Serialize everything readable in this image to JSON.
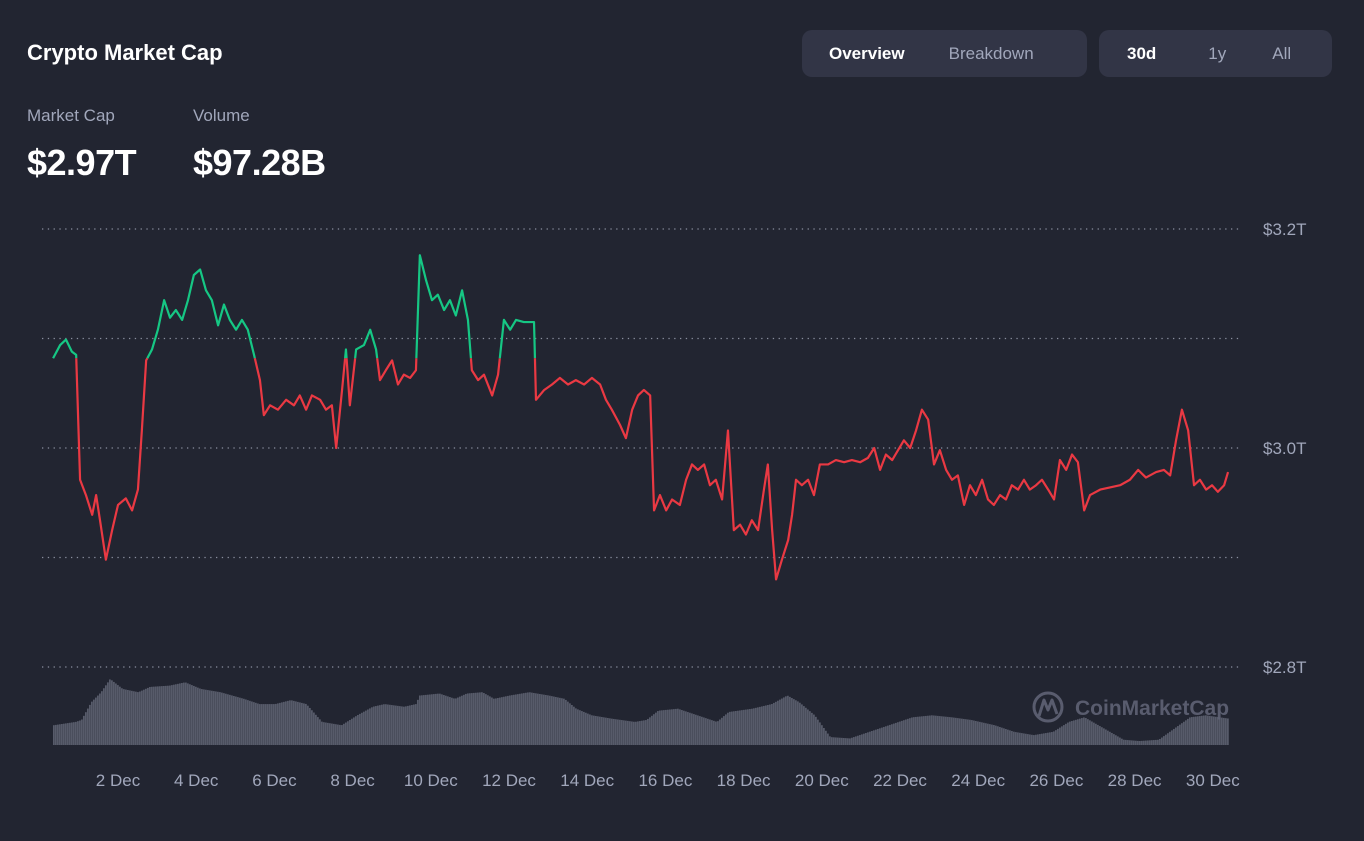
{
  "header": {
    "title": "Crypto Market Cap"
  },
  "view_tabs": [
    {
      "label": "Overview",
      "active": true
    },
    {
      "label": "Breakdown",
      "active": false
    }
  ],
  "range_tabs": [
    {
      "label": "30d",
      "active": true
    },
    {
      "label": "1y",
      "active": false
    },
    {
      "label": "All",
      "active": false
    }
  ],
  "metrics": {
    "market_cap_label": "Market Cap",
    "market_cap_value": "$2.97T",
    "volume_label": "Volume",
    "volume_value": "$97.28B"
  },
  "watermark": "CoinMarketCap",
  "colors": {
    "up": "#16c784",
    "down": "#ea3943",
    "volume": "#5d6170",
    "grid": "#8a8f9f",
    "background": "#222531"
  },
  "chart_data": {
    "type": "line",
    "ylabel": "",
    "xlabel": "",
    "ylim": [
      2.8,
      3.2
    ],
    "y_ticks": [
      {
        "value": 3.2,
        "label": "$3.2T"
      },
      {
        "value": 3.1,
        "label": ""
      },
      {
        "value": 3.0,
        "label": "$3.0T"
      },
      {
        "value": 2.9,
        "label": ""
      },
      {
        "value": 2.8,
        "label": "$2.8T"
      }
    ],
    "x_unit": "day of December",
    "x_ticks": [
      {
        "value": 2,
        "label": "2 Dec"
      },
      {
        "value": 4,
        "label": "4 Dec"
      },
      {
        "value": 6,
        "label": "6 Dec"
      },
      {
        "value": 8,
        "label": "8 Dec"
      },
      {
        "value": 10,
        "label": "10 Dec"
      },
      {
        "value": 12,
        "label": "12 Dec"
      },
      {
        "value": 14,
        "label": "14 Dec"
      },
      {
        "value": 16,
        "label": "16 Dec"
      },
      {
        "value": 18,
        "label": "18 Dec"
      },
      {
        "value": 20,
        "label": "20 Dec"
      },
      {
        "value": 22,
        "label": "22 Dec"
      },
      {
        "value": 24,
        "label": "24 Dec"
      },
      {
        "value": 26,
        "label": "26 Dec"
      },
      {
        "value": 28,
        "label": "28 Dec"
      },
      {
        "value": 30,
        "label": "30 Dec"
      }
    ],
    "coloring": "green above first value, red below",
    "grid": true,
    "series": [
      {
        "unit": "T USD",
        "points": [
          [
            0.34,
            3.082
          ],
          [
            0.52,
            3.094
          ],
          [
            0.67,
            3.099
          ],
          [
            0.82,
            3.088
          ],
          [
            0.93,
            3.085
          ],
          [
            1.03,
            2.971
          ],
          [
            1.18,
            2.957
          ],
          [
            1.34,
            2.939
          ],
          [
            1.44,
            2.957
          ],
          [
            1.54,
            2.934
          ],
          [
            1.69,
            2.898
          ],
          [
            1.85,
            2.925
          ],
          [
            2.0,
            2.948
          ],
          [
            2.2,
            2.954
          ],
          [
            2.36,
            2.943
          ],
          [
            2.51,
            2.962
          ],
          [
            2.61,
            3.016
          ],
          [
            2.72,
            3.08
          ],
          [
            2.87,
            3.09
          ],
          [
            3.02,
            3.108
          ],
          [
            3.18,
            3.135
          ],
          [
            3.33,
            3.119
          ],
          [
            3.48,
            3.126
          ],
          [
            3.64,
            3.117
          ],
          [
            3.79,
            3.135
          ],
          [
            3.94,
            3.158
          ],
          [
            4.1,
            3.163
          ],
          [
            4.25,
            3.144
          ],
          [
            4.4,
            3.135
          ],
          [
            4.56,
            3.112
          ],
          [
            4.71,
            3.131
          ],
          [
            4.86,
            3.117
          ],
          [
            5.02,
            3.108
          ],
          [
            5.17,
            3.117
          ],
          [
            5.32,
            3.108
          ],
          [
            5.48,
            3.085
          ],
          [
            5.63,
            3.062
          ],
          [
            5.73,
            3.03
          ],
          [
            5.89,
            3.039
          ],
          [
            6.09,
            3.035
          ],
          [
            6.3,
            3.044
          ],
          [
            6.5,
            3.039
          ],
          [
            6.65,
            3.048
          ],
          [
            6.81,
            3.035
          ],
          [
            6.96,
            3.048
          ],
          [
            7.17,
            3.044
          ],
          [
            7.32,
            3.035
          ],
          [
            7.47,
            3.039
          ],
          [
            7.58,
            3.0
          ],
          [
            7.73,
            3.053
          ],
          [
            7.83,
            3.09
          ],
          [
            7.93,
            3.039
          ],
          [
            8.09,
            3.09
          ],
          [
            8.29,
            3.094
          ],
          [
            8.45,
            3.108
          ],
          [
            8.6,
            3.09
          ],
          [
            8.7,
            3.062
          ],
          [
            8.85,
            3.071
          ],
          [
            9.01,
            3.08
          ],
          [
            9.16,
            3.058
          ],
          [
            9.31,
            3.067
          ],
          [
            9.47,
            3.064
          ],
          [
            9.62,
            3.071
          ],
          [
            9.72,
            3.176
          ],
          [
            9.88,
            3.153
          ],
          [
            10.03,
            3.135
          ],
          [
            10.18,
            3.14
          ],
          [
            10.34,
            3.126
          ],
          [
            10.49,
            3.135
          ],
          [
            10.64,
            3.121
          ],
          [
            10.8,
            3.144
          ],
          [
            10.95,
            3.117
          ],
          [
            11.05,
            3.071
          ],
          [
            11.21,
            3.062
          ],
          [
            11.36,
            3.067
          ],
          [
            11.57,
            3.048
          ],
          [
            11.72,
            3.067
          ],
          [
            11.87,
            3.117
          ],
          [
            12.03,
            3.108
          ],
          [
            12.18,
            3.117
          ],
          [
            12.38,
            3.115
          ],
          [
            12.64,
            3.115
          ],
          [
            12.69,
            3.044
          ],
          [
            12.9,
            3.053
          ],
          [
            13.1,
            3.058
          ],
          [
            13.3,
            3.064
          ],
          [
            13.51,
            3.058
          ],
          [
            13.71,
            3.062
          ],
          [
            13.92,
            3.058
          ],
          [
            14.12,
            3.064
          ],
          [
            14.33,
            3.058
          ],
          [
            14.48,
            3.044
          ],
          [
            14.63,
            3.035
          ],
          [
            14.84,
            3.021
          ],
          [
            14.99,
            3.009
          ],
          [
            15.15,
            3.035
          ],
          [
            15.3,
            3.048
          ],
          [
            15.45,
            3.053
          ],
          [
            15.61,
            3.048
          ],
          [
            15.71,
            2.943
          ],
          [
            15.86,
            2.957
          ],
          [
            16.02,
            2.943
          ],
          [
            16.17,
            2.953
          ],
          [
            16.37,
            2.948
          ],
          [
            16.53,
            2.971
          ],
          [
            16.68,
            2.985
          ],
          [
            16.83,
            2.98
          ],
          [
            16.99,
            2.985
          ],
          [
            17.14,
            2.966
          ],
          [
            17.29,
            2.971
          ],
          [
            17.45,
            2.953
          ],
          [
            17.6,
            3.016
          ],
          [
            17.75,
            2.925
          ],
          [
            17.91,
            2.93
          ],
          [
            18.06,
            2.921
          ],
          [
            18.21,
            2.934
          ],
          [
            18.37,
            2.925
          ],
          [
            18.52,
            2.962
          ],
          [
            18.62,
            2.985
          ],
          [
            18.73,
            2.925
          ],
          [
            18.83,
            2.88
          ],
          [
            18.98,
            2.898
          ],
          [
            19.14,
            2.916
          ],
          [
            19.24,
            2.939
          ],
          [
            19.34,
            2.971
          ],
          [
            19.49,
            2.966
          ],
          [
            19.65,
            2.971
          ],
          [
            19.8,
            2.957
          ],
          [
            19.95,
            2.985
          ],
          [
            20.16,
            2.985
          ],
          [
            20.36,
            2.989
          ],
          [
            20.57,
            2.987
          ],
          [
            20.77,
            2.989
          ],
          [
            20.98,
            2.987
          ],
          [
            21.18,
            2.991
          ],
          [
            21.34,
            3.0
          ],
          [
            21.49,
            2.98
          ],
          [
            21.64,
            2.994
          ],
          [
            21.8,
            2.989
          ],
          [
            21.95,
            2.998
          ],
          [
            22.1,
            3.007
          ],
          [
            22.26,
            3.0
          ],
          [
            22.41,
            3.016
          ],
          [
            22.56,
            3.035
          ],
          [
            22.72,
            3.026
          ],
          [
            22.87,
            2.985
          ],
          [
            23.02,
            2.998
          ],
          [
            23.18,
            2.98
          ],
          [
            23.33,
            2.971
          ],
          [
            23.48,
            2.975
          ],
          [
            23.64,
            2.948
          ],
          [
            23.79,
            2.966
          ],
          [
            23.94,
            2.957
          ],
          [
            24.1,
            2.971
          ],
          [
            24.25,
            2.953
          ],
          [
            24.4,
            2.948
          ],
          [
            24.56,
            2.957
          ],
          [
            24.71,
            2.953
          ],
          [
            24.86,
            2.966
          ],
          [
            25.02,
            2.962
          ],
          [
            25.17,
            2.971
          ],
          [
            25.32,
            2.962
          ],
          [
            25.48,
            2.966
          ],
          [
            25.63,
            2.971
          ],
          [
            25.79,
            2.962
          ],
          [
            25.94,
            2.953
          ],
          [
            26.09,
            2.989
          ],
          [
            26.25,
            2.98
          ],
          [
            26.4,
            2.994
          ],
          [
            26.55,
            2.987
          ],
          [
            26.71,
            2.943
          ],
          [
            26.86,
            2.957
          ],
          [
            27.12,
            2.962
          ],
          [
            27.37,
            2.964
          ],
          [
            27.63,
            2.966
          ],
          [
            27.88,
            2.971
          ],
          [
            28.09,
            2.98
          ],
          [
            28.29,
            2.973
          ],
          [
            28.55,
            2.978
          ],
          [
            28.75,
            2.98
          ],
          [
            28.91,
            2.975
          ],
          [
            29.06,
            3.007
          ],
          [
            29.21,
            3.035
          ],
          [
            29.37,
            3.016
          ],
          [
            29.52,
            2.966
          ],
          [
            29.67,
            2.971
          ],
          [
            29.83,
            2.962
          ],
          [
            29.98,
            2.966
          ],
          [
            30.13,
            2.96
          ],
          [
            30.29,
            2.966
          ],
          [
            30.39,
            2.978
          ]
        ]
      }
    ],
    "volume_relative": [
      [
        0.34,
        0.3
      ],
      [
        0.9,
        0.35
      ],
      [
        1.05,
        0.38
      ],
      [
        1.3,
        0.65
      ],
      [
        1.55,
        0.8
      ],
      [
        1.78,
        1.0
      ],
      [
        2.1,
        0.85
      ],
      [
        2.5,
        0.8
      ],
      [
        2.8,
        0.88
      ],
      [
        3.3,
        0.9
      ],
      [
        3.7,
        0.95
      ],
      [
        4.1,
        0.85
      ],
      [
        4.6,
        0.8
      ],
      [
        5.2,
        0.7
      ],
      [
        5.6,
        0.62
      ],
      [
        6.0,
        0.62
      ],
      [
        6.4,
        0.68
      ],
      [
        6.8,
        0.62
      ],
      [
        7.2,
        0.35
      ],
      [
        7.7,
        0.3
      ],
      [
        8.1,
        0.45
      ],
      [
        8.5,
        0.58
      ],
      [
        8.8,
        0.62
      ],
      [
        9.3,
        0.58
      ],
      [
        9.6,
        0.62
      ],
      [
        9.7,
        0.75
      ],
      [
        10.2,
        0.78
      ],
      [
        10.6,
        0.7
      ],
      [
        10.9,
        0.78
      ],
      [
        11.3,
        0.8
      ],
      [
        11.6,
        0.7
      ],
      [
        12.0,
        0.75
      ],
      [
        12.5,
        0.8
      ],
      [
        13.0,
        0.75
      ],
      [
        13.4,
        0.7
      ],
      [
        13.7,
        0.55
      ],
      [
        14.1,
        0.45
      ],
      [
        14.6,
        0.4
      ],
      [
        15.2,
        0.35
      ],
      [
        15.5,
        0.38
      ],
      [
        15.8,
        0.52
      ],
      [
        16.3,
        0.55
      ],
      [
        16.8,
        0.45
      ],
      [
        17.3,
        0.35
      ],
      [
        17.6,
        0.5
      ],
      [
        18.2,
        0.55
      ],
      [
        18.7,
        0.62
      ],
      [
        19.1,
        0.75
      ],
      [
        19.4,
        0.65
      ],
      [
        19.8,
        0.45
      ],
      [
        20.2,
        0.12
      ],
      [
        20.7,
        0.1
      ],
      [
        21.2,
        0.2
      ],
      [
        21.7,
        0.3
      ],
      [
        22.3,
        0.42
      ],
      [
        22.8,
        0.45
      ],
      [
        23.3,
        0.42
      ],
      [
        23.8,
        0.38
      ],
      [
        24.4,
        0.3
      ],
      [
        24.9,
        0.2
      ],
      [
        25.4,
        0.15
      ],
      [
        25.9,
        0.2
      ],
      [
        26.3,
        0.35
      ],
      [
        26.7,
        0.42
      ],
      [
        27.2,
        0.25
      ],
      [
        27.7,
        0.08
      ],
      [
        28.1,
        0.06
      ],
      [
        28.6,
        0.08
      ],
      [
        29.0,
        0.25
      ],
      [
        29.4,
        0.42
      ],
      [
        29.8,
        0.45
      ],
      [
        30.39,
        0.4
      ]
    ]
  }
}
